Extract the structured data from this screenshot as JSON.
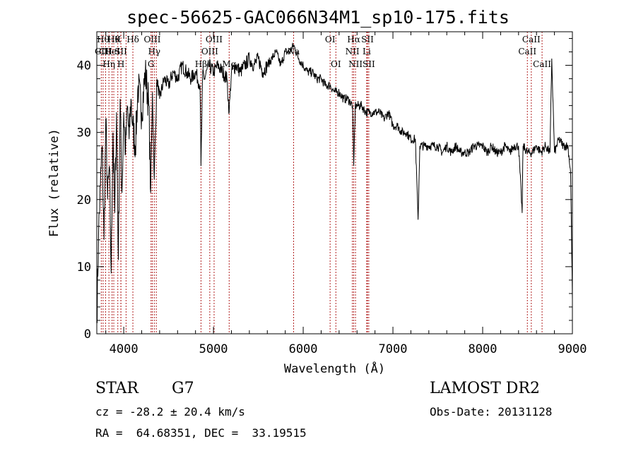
{
  "chart_data": {
    "type": "line",
    "title": "spec-56625-GAC066N34M1_sp10-175.fits",
    "xlabel": "Wavelength (Å)",
    "ylabel": "Flux (relative)",
    "xlim": [
      3700,
      9000
    ],
    "ylim": [
      0,
      45
    ],
    "xticks": [
      4000,
      5000,
      6000,
      7000,
      8000,
      9000
    ],
    "yticks": [
      0,
      10,
      20,
      30,
      40
    ],
    "grid": false,
    "line_color": "#000000",
    "marker_color": "#b22222",
    "series": [
      {
        "x": [
          3700,
          3720,
          3740,
          3760,
          3780,
          3800,
          3820,
          3840,
          3860,
          3880,
          3900,
          3920,
          3940,
          3960,
          3980,
          4000,
          4020,
          4040,
          4060,
          4080,
          4100,
          4130,
          4160,
          4200,
          4240,
          4280,
          4300,
          4320,
          4340,
          4370,
          4400,
          4450,
          4500,
          4550,
          4600,
          4650,
          4700,
          4750,
          4800,
          4850,
          4861,
          4880,
          4900,
          4950,
          5000,
          5050,
          5100,
          5150,
          5175,
          5200,
          5250,
          5300,
          5350,
          5400,
          5450,
          5500,
          5550,
          5600,
          5650,
          5700,
          5750,
          5800,
          5850,
          5893,
          5950,
          6000,
          6050,
          6100,
          6150,
          6200,
          6250,
          6300,
          6350,
          6400,
          6450,
          6500,
          6550,
          6563,
          6580,
          6600,
          6650,
          6700,
          6750,
          6800,
          6850,
          6900,
          6950,
          7000,
          7050,
          7100,
          7150,
          7200,
          7250,
          7280,
          7300,
          7350,
          7400,
          7450,
          7500,
          7550,
          7600,
          7650,
          7700,
          7750,
          7800,
          7850,
          7900,
          7950,
          8000,
          8050,
          8100,
          8150,
          8200,
          8250,
          8300,
          8350,
          8400,
          8440,
          8450,
          8500,
          8550,
          8600,
          8650,
          8700,
          8750,
          8770,
          8800,
          8850,
          8900,
          8950,
          8980,
          9000
        ],
        "y": [
          2,
          15,
          22,
          28,
          14,
          32,
          20,
          25,
          9,
          30,
          18,
          33,
          11,
          35,
          21,
          33,
          27,
          34,
          29,
          35,
          31,
          28,
          37,
          33,
          39,
          34,
          21,
          36,
          23,
          38,
          35,
          38,
          37,
          39,
          38,
          40,
          39,
          38,
          39,
          37,
          25,
          39,
          38,
          40,
          39,
          40,
          39,
          38,
          33,
          39,
          40,
          39,
          40,
          41,
          40,
          41,
          39,
          40,
          41,
          42,
          40,
          42,
          42,
          43,
          41,
          40,
          39,
          39,
          38,
          38,
          37,
          37,
          36,
          36,
          35,
          35,
          34,
          25,
          34,
          34,
          34,
          33,
          33,
          33,
          33,
          32,
          33,
          31,
          31,
          30,
          30,
          29,
          29,
          17,
          28,
          28,
          28,
          28,
          28,
          27,
          28,
          27,
          28,
          27,
          27,
          27,
          28,
          28,
          28,
          27,
          28,
          27,
          27,
          28,
          27,
          28,
          28,
          18,
          28,
          27,
          27,
          28,
          27,
          28,
          27,
          41,
          27,
          29,
          28,
          28,
          24,
          5
        ]
      }
    ],
    "lines": [
      {
        "x": 3750,
        "label": "CII",
        "row": 2
      },
      {
        "x": 3770,
        "label": "Hθ",
        "row": 1
      },
      {
        "x": 3798,
        "label": "CII",
        "row": 2
      },
      {
        "x": 3835,
        "label": "Hη",
        "row": 3
      },
      {
        "x": 3870,
        "label": "HeI",
        "row": 2
      },
      {
        "x": 3889,
        "label": "Hθ",
        "row": 1
      },
      {
        "x": 3934,
        "label": "K",
        "row": 1
      },
      {
        "x": 3969,
        "label": "H",
        "row": 3
      },
      {
        "x": 3968,
        "label": "SII",
        "row": 2
      },
      {
        "x": 4026,
        "label": "",
        "row": 0
      },
      {
        "x": 4102,
        "label": "Hδ",
        "row": 1
      },
      {
        "x": 4304,
        "label": "G",
        "row": 3
      },
      {
        "x": 4318,
        "label": "OIII",
        "row": 1
      },
      {
        "x": 4340,
        "label": "Hγ",
        "row": 2
      },
      {
        "x": 4363,
        "label": "",
        "row": 0
      },
      {
        "x": 4861,
        "label": "Hβ",
        "row": 3
      },
      {
        "x": 4959,
        "label": "OIII",
        "row": 2
      },
      {
        "x": 5007,
        "label": "OIII",
        "row": 1
      },
      {
        "x": 5175,
        "label": "Mg",
        "row": 3
      },
      {
        "x": 5893,
        "label": "Na",
        "row": 2
      },
      {
        "x": 6300,
        "label": "OI",
        "row": 1
      },
      {
        "x": 6364,
        "label": "OI",
        "row": 3
      },
      {
        "x": 6548,
        "label": "NII",
        "row": 2
      },
      {
        "x": 6563,
        "label": "Hα",
        "row": 1
      },
      {
        "x": 6583,
        "label": "NII",
        "row": 3
      },
      {
        "x": 6708,
        "label": "Li",
        "row": 2
      },
      {
        "x": 6716,
        "label": "SII",
        "row": 1
      },
      {
        "x": 6731,
        "label": "SII",
        "row": 3
      },
      {
        "x": 8498,
        "label": "CaII",
        "row": 2
      },
      {
        "x": 8542,
        "label": "CaII",
        "row": 1
      },
      {
        "x": 8662,
        "label": "CaII",
        "row": 3
      }
    ]
  },
  "info": {
    "obj_type": "STAR",
    "subclass": "G7",
    "survey": "LAMOST DR2",
    "cz": "cz = -28.2 ± 20.4 km/s",
    "obs_date": "Obs-Date: 20131128",
    "radec": "RA =  64.68351, DEC =  33.19515"
  }
}
